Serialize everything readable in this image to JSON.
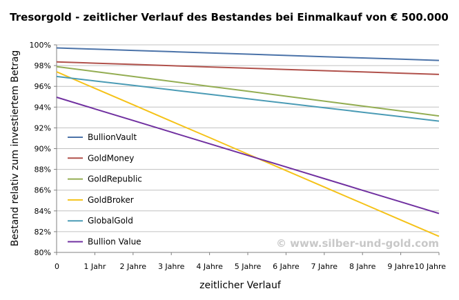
{
  "chart_data": {
    "type": "line",
    "title": "Tresorgold - zeitlicher Verlauf des Bestandes bei Einmalkauf von € 500.000",
    "xlabel": "zeitlicher Verlauf",
    "ylabel": "Bestand relativ zum investiertem Betrag",
    "x": [
      0,
      1,
      2,
      3,
      4,
      5,
      6,
      7,
      8,
      9,
      10
    ],
    "x_tick_labels": [
      "0",
      "1 Jahr",
      "2 Jahre",
      "3 Jahre",
      "4 Jahre",
      "5 Jahre",
      "6 Jahre",
      "7 Jahre",
      "8 Jahre",
      "9 Jahre",
      "10 Jahre"
    ],
    "ylim": [
      80,
      100
    ],
    "y_ticks": [
      80,
      82,
      84,
      86,
      88,
      90,
      92,
      94,
      96,
      98,
      100
    ],
    "y_tick_labels": [
      "80%",
      "82%",
      "84%",
      "86%",
      "88%",
      "90%",
      "92%",
      "94%",
      "96%",
      "98%",
      "100%"
    ],
    "grid": "horizontal",
    "legend_position": "left",
    "series": [
      {
        "name": "BullionVault",
        "color": "#4a72a8",
        "values": [
          99.7,
          99.58,
          99.46,
          99.34,
          99.22,
          99.1,
          98.98,
          98.86,
          98.74,
          98.62,
          98.5
        ]
      },
      {
        "name": "GoldMoney",
        "color": "#b0504a",
        "values": [
          98.35,
          98.23,
          98.11,
          97.99,
          97.87,
          97.75,
          97.63,
          97.51,
          97.39,
          97.27,
          97.15
        ]
      },
      {
        "name": "GoldRepublic",
        "color": "#93ad52",
        "values": [
          97.9,
          97.43,
          96.95,
          96.48,
          96.0,
          95.53,
          95.05,
          94.58,
          94.1,
          93.63,
          93.15
        ]
      },
      {
        "name": "GoldBroker",
        "color": "#f5c218",
        "values": [
          97.4,
          95.81,
          94.23,
          92.64,
          91.06,
          89.47,
          87.89,
          86.3,
          84.72,
          83.13,
          81.55
        ]
      },
      {
        "name": "GlobalGold",
        "color": "#4a9bb5",
        "values": [
          96.95,
          96.52,
          96.09,
          95.66,
          95.23,
          94.8,
          94.37,
          93.94,
          93.51,
          93.08,
          92.65
        ]
      },
      {
        "name": "Bullion Value",
        "color": "#7030a0",
        "values": [
          94.95,
          93.83,
          92.71,
          91.59,
          90.47,
          89.35,
          88.23,
          87.11,
          85.99,
          84.87,
          83.75
        ]
      }
    ],
    "annotation": "© www.silber-und-gold.com"
  }
}
